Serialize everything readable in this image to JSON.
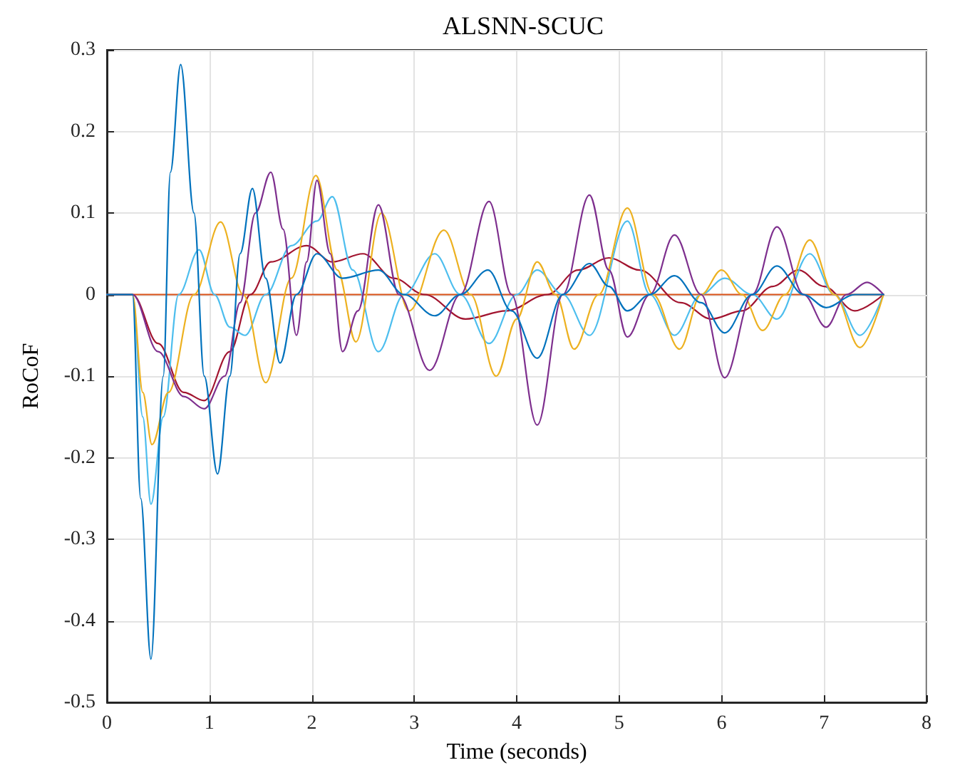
{
  "chart_data": {
    "type": "line",
    "title": "ALSNN-SCUC",
    "xlabel": "Time (seconds)",
    "ylabel": "RoCoF",
    "xlim": [
      0,
      8
    ],
    "xticks": [
      0,
      1,
      2,
      3,
      4,
      5,
      6,
      7,
      8
    ],
    "ylim": [
      -0.5,
      0.3
    ],
    "yticks": [
      -0.5,
      -0.4,
      -0.3,
      -0.2,
      -0.1,
      0,
      0.1,
      0.2,
      0.3
    ],
    "grid": true,
    "marker": "none",
    "line_style": "solid",
    "series": [
      {
        "color": "#d95319",
        "x": [
          0,
          7.58
        ],
        "values": [
          0,
          0
        ]
      },
      {
        "color": "#a2142f",
        "x": [
          0,
          0.25,
          0.5,
          0.75,
          0.95,
          1.2,
          1.4,
          1.6,
          1.95,
          2.2,
          2.5,
          2.8,
          3.1,
          3.5,
          3.9,
          4.3,
          4.6,
          4.9,
          5.2,
          5.6,
          5.9,
          6.2,
          6.5,
          6.75,
          7.0,
          7.3,
          7.58
        ],
        "values": [
          0,
          0,
          -0.06,
          -0.12,
          -0.13,
          -0.07,
          0.0,
          0.04,
          0.06,
          0.04,
          0.05,
          0.02,
          0.0,
          -0.03,
          -0.02,
          0.0,
          0.03,
          0.045,
          0.03,
          -0.01,
          -0.03,
          -0.02,
          0.01,
          0.03,
          0.01,
          -0.02,
          0
        ]
      },
      {
        "color": "#4dbeee",
        "x": [
          0,
          0.25,
          0.35,
          0.43,
          0.55,
          0.7,
          0.9,
          1.05,
          1.2,
          1.35,
          1.55,
          1.8,
          2.05,
          2.2,
          2.4,
          2.65,
          2.9,
          3.2,
          3.45,
          3.73,
          4.0,
          4.2,
          4.45,
          4.71,
          5.08,
          5.3,
          5.54,
          5.8,
          6.03,
          6.3,
          6.54,
          6.86,
          7.1,
          7.35,
          7.58
        ],
        "values": [
          0,
          0,
          -0.15,
          -0.257,
          -0.15,
          0.0,
          0.055,
          0.0,
          -0.04,
          -0.05,
          0.0,
          0.06,
          0.09,
          0.12,
          0.03,
          -0.07,
          0.0,
          0.05,
          0.0,
          -0.06,
          0.0,
          0.03,
          0.0,
          -0.05,
          0.09,
          0.0,
          -0.05,
          0.0,
          0.02,
          0.0,
          -0.03,
          0.05,
          0.0,
          -0.05,
          0
        ]
      },
      {
        "color": "#edb120",
        "x": [
          0,
          0.25,
          0.35,
          0.44,
          0.6,
          0.85,
          1.11,
          1.33,
          1.55,
          1.8,
          2.04,
          2.25,
          2.43,
          2.68,
          2.95,
          3.29,
          3.55,
          3.8,
          4.0,
          4.2,
          4.38,
          4.56,
          4.8,
          5.08,
          5.33,
          5.59,
          5.8,
          6.0,
          6.2,
          6.4,
          6.62,
          6.86,
          7.1,
          7.35,
          7.58
        ],
        "values": [
          0,
          0,
          -0.12,
          -0.184,
          -0.12,
          0.0,
          0.089,
          0.0,
          -0.108,
          0.02,
          0.146,
          0.03,
          -0.058,
          0.1,
          -0.02,
          0.079,
          0.0,
          -0.1,
          -0.03,
          0.04,
          0.0,
          -0.067,
          0.0,
          0.106,
          0.0,
          -0.067,
          0.0,
          0.03,
          0.0,
          -0.044,
          0.0,
          0.067,
          0.0,
          -0.065,
          0
        ]
      },
      {
        "color": "#7e2f8e",
        "x": [
          0,
          0.25,
          0.5,
          0.75,
          0.95,
          1.15,
          1.3,
          1.45,
          1.6,
          1.72,
          1.85,
          1.95,
          2.05,
          2.18,
          2.3,
          2.45,
          2.65,
          2.85,
          3.15,
          3.45,
          3.73,
          3.95,
          4.2,
          4.45,
          4.71,
          4.9,
          5.08,
          5.3,
          5.54,
          5.8,
          6.03,
          6.3,
          6.54,
          6.8,
          7.02,
          7.22,
          7.42,
          7.58
        ],
        "values": [
          0,
          0,
          -0.07,
          -0.125,
          -0.14,
          -0.1,
          -0.01,
          0.1,
          0.15,
          0.08,
          -0.05,
          0.04,
          0.14,
          0.05,
          -0.07,
          -0.02,
          0.11,
          0.0,
          -0.093,
          0.0,
          0.114,
          0.0,
          -0.16,
          0.0,
          0.122,
          0.03,
          -0.052,
          0.0,
          0.073,
          0.0,
          -0.102,
          0.0,
          0.083,
          0.0,
          -0.04,
          0.0,
          0.015,
          0
        ]
      },
      {
        "color": "#0072bd",
        "x": [
          0,
          0.25,
          0.33,
          0.43,
          0.55,
          0.62,
          0.72,
          0.85,
          0.95,
          1.08,
          1.2,
          1.3,
          1.42,
          1.55,
          1.69,
          1.85,
          2.05,
          2.3,
          2.65,
          2.9,
          3.2,
          3.45,
          3.72,
          3.95,
          4.2,
          4.45,
          4.71,
          4.9,
          5.08,
          5.3,
          5.54,
          5.8,
          6.03,
          6.3,
          6.54,
          6.8,
          7.02,
          7.3,
          7.58
        ],
        "values": [
          0,
          0,
          -0.25,
          -0.447,
          -0.1,
          0.15,
          0.282,
          0.1,
          -0.1,
          -0.22,
          -0.1,
          0.05,
          0.13,
          0.02,
          -0.084,
          0.0,
          0.05,
          0.02,
          0.03,
          0.0,
          -0.026,
          0.0,
          0.03,
          -0.02,
          -0.078,
          0.0,
          0.038,
          0.01,
          -0.02,
          0.0,
          0.023,
          -0.01,
          -0.047,
          0.0,
          0.035,
          0.0,
          -0.016,
          0.0,
          0
        ]
      }
    ]
  }
}
